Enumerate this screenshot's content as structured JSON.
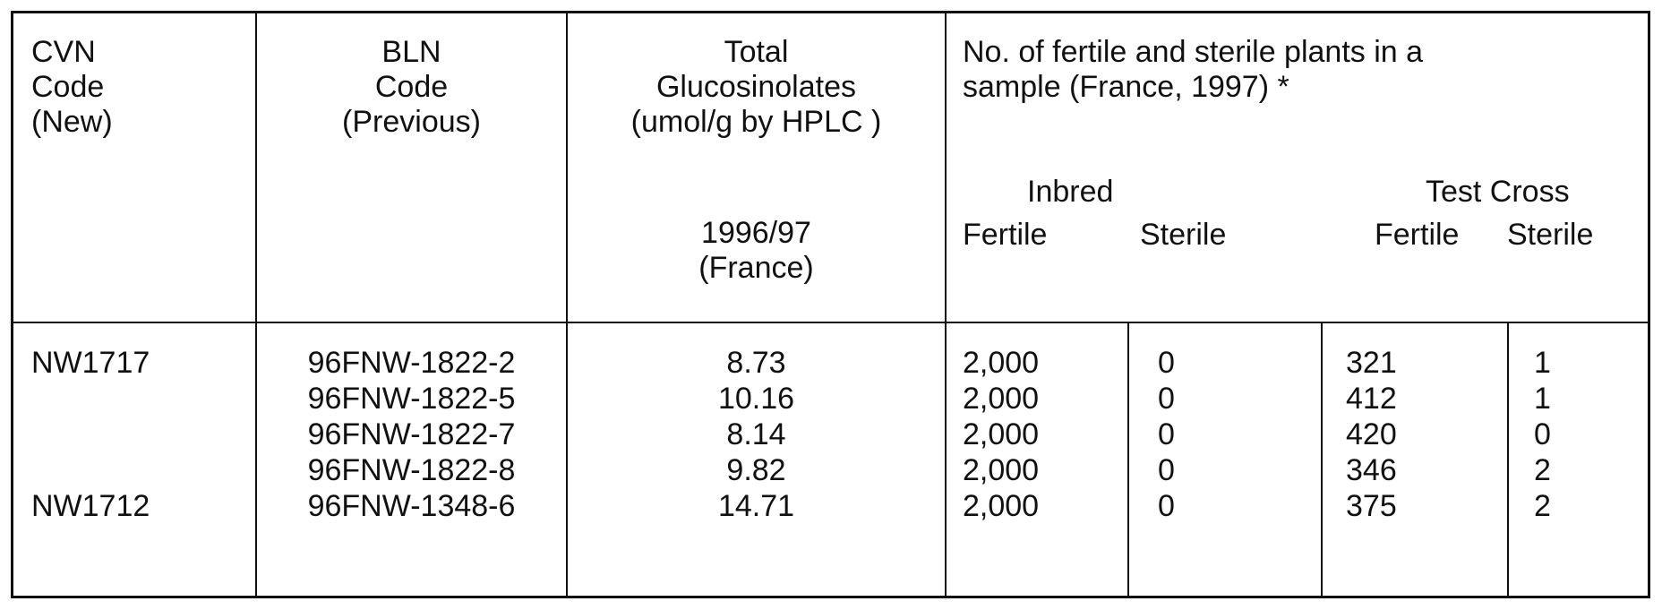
{
  "header": {
    "cvn": [
      "CVN",
      "Code",
      "(New)"
    ],
    "bln": [
      "BLN",
      "Code",
      "(Previous)"
    ],
    "total": [
      "Total",
      "Glucosinolates",
      "(umol/g by HPLC )"
    ],
    "season": [
      "1996/97",
      "(France)"
    ],
    "plants": [
      "No. of fertile and sterile plants in a",
      "sample (France, 1997) *"
    ],
    "inbred": "Inbred",
    "test_cross": "Test Cross",
    "fertile": "Fertile",
    "sterile": "Sterile"
  },
  "rows": [
    {
      "cvn": "NW1717",
      "bln": "96FNW-1822-2",
      "gluc": "8.73",
      "inb_fertile": "2,000",
      "inb_sterile": "0",
      "tc_fertile": "321",
      "tc_sterile": "1"
    },
    {
      "cvn": "",
      "bln": "96FNW-1822-5",
      "gluc": "10.16",
      "inb_fertile": "2,000",
      "inb_sterile": "0",
      "tc_fertile": "412",
      "tc_sterile": "1"
    },
    {
      "cvn": "",
      "bln": "96FNW-1822-7",
      "gluc": "8.14",
      "inb_fertile": "2,000",
      "inb_sterile": "0",
      "tc_fertile": "420",
      "tc_sterile": "0"
    },
    {
      "cvn": "",
      "bln": "96FNW-1822-8",
      "gluc": "9.82",
      "inb_fertile": "2,000",
      "inb_sterile": "0",
      "tc_fertile": "346",
      "tc_sterile": "2"
    },
    {
      "cvn": "NW1712",
      "bln": "96FNW-1348-6",
      "gluc": "14.71",
      "inb_fertile": "2,000",
      "inb_sterile": "0",
      "tc_fertile": "375",
      "tc_sterile": "2"
    }
  ]
}
